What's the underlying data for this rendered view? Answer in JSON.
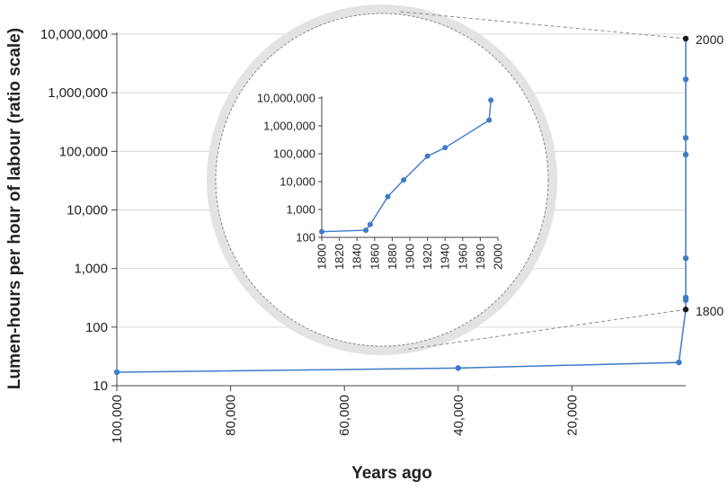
{
  "chart_data": [
    {
      "type": "line",
      "role": "main",
      "xlabel": "Years ago",
      "ylabel": "Lumen-hours per hour of labour (ratio scale)",
      "y_scale": "log",
      "ylim": [
        10,
        10000000
      ],
      "y_ticks": [
        10,
        100,
        1000,
        10000,
        100000,
        1000000,
        10000000
      ],
      "y_tick_labels": [
        "10",
        "100",
        "1,000",
        "10,000",
        "100,000",
        "1,000,000",
        "10,000,000"
      ],
      "xlim": [
        100000,
        0
      ],
      "x_ticks": [
        100000,
        80000,
        60000,
        40000,
        20000
      ],
      "x_tick_labels": [
        "100,000",
        "80,000",
        "60,000",
        "40,000",
        "20,000"
      ],
      "grid": true,
      "line_color": "#3f7bc8",
      "series": [
        {
          "x": [
            100000,
            40000,
            1200,
            0,
            0,
            0,
            0,
            0,
            0,
            0,
            0
          ],
          "y": [
            17,
            20,
            25,
            320,
            290,
            1500,
            88000,
            170000,
            1700000,
            8400000,
            200
          ]
        }
      ],
      "endpoint_labels": [
        "1800",
        "2000"
      ]
    },
    {
      "type": "line",
      "role": "inset",
      "y_scale": "log",
      "ylim": [
        100,
        10000000
      ],
      "y_ticks": [
        100,
        1000,
        10000,
        100000,
        1000000,
        10000000
      ],
      "y_tick_labels": [
        "100",
        "1,000",
        "10,000",
        "100,000",
        "1,000,000",
        "10,000,000"
      ],
      "xlim": [
        1800,
        2000
      ],
      "x_ticks": [
        1800,
        1820,
        1840,
        1860,
        1880,
        1900,
        1920,
        1940,
        1960,
        1980,
        2000
      ],
      "x_tick_labels": [
        "1800",
        "1820",
        "1840",
        "1860",
        "1880",
        "1900",
        "1920",
        "1940",
        "1960",
        "1980",
        "2000"
      ],
      "grid": false,
      "line_color": "#3f7bc8",
      "series": [
        {
          "x": [
            1800,
            1850,
            1855,
            1875,
            1893,
            1920,
            1940,
            1990,
            1992
          ],
          "y": [
            160,
            180,
            290,
            2900,
            11500,
            82000,
            165000,
            1600000,
            8400000
          ]
        }
      ]
    }
  ]
}
